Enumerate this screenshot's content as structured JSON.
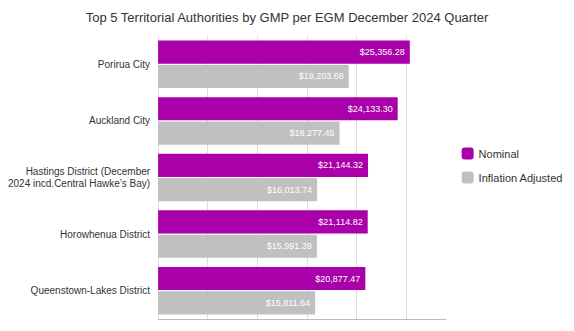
{
  "chart_data": {
    "type": "bar",
    "orientation": "horizontal",
    "title": "Top 5 Territorial Authorities by GMP per EGM December 2024 Quarter",
    "categories": [
      "Porirua City",
      "Auckland City",
      "Hastings District (December\n2024 incd.Central Hawke’s Bay)",
      "Horowhenua District",
      "Queenstown-Lakes District"
    ],
    "series": [
      {
        "name": "Nominal",
        "color": "#AA00AA",
        "values": [
          25356.28,
          24133.3,
          21144.32,
          21114.82,
          20877.47
        ],
        "value_labels": [
          "$25,356.28",
          "$24,133.30",
          "$21,144.32",
          "$21,114.82",
          "$20,877.47"
        ]
      },
      {
        "name": "Inflation Adjusted",
        "color": "#C0C0C0",
        "values": [
          19203.68,
          18277.45,
          16013.74,
          15991.39,
          15811.64
        ],
        "value_labels": [
          "$19,203.68",
          "$18,277.45",
          "$16,013.74",
          "$15,991.39",
          "$15,811.64"
        ]
      }
    ],
    "xlim": [
      0,
      29000
    ],
    "xticks": [
      0,
      5000,
      10000,
      15000,
      20000,
      25000
    ],
    "grid": true,
    "legend": "right",
    "data_labels": true,
    "tick_labels": "y"
  }
}
